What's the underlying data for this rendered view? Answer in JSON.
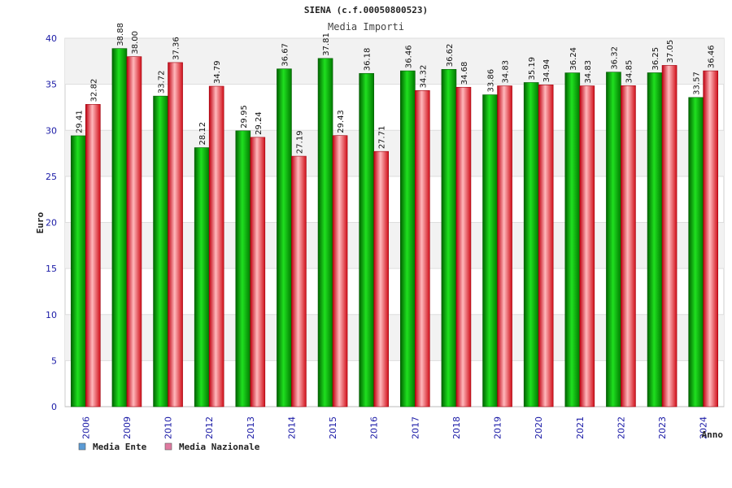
{
  "chart_data": {
    "type": "bar",
    "title": "SIENA (c.f.00050800523)",
    "subtitle": "Media Importi",
    "xlabel": "Anno",
    "ylabel": "Euro",
    "ylim": [
      0,
      40
    ],
    "yticks": [
      0,
      5,
      10,
      15,
      20,
      25,
      30,
      35,
      40
    ],
    "grid": true,
    "legend_position": "bottom-left",
    "categories": [
      "2006",
      "2009",
      "2010",
      "2012",
      "2013",
      "2014",
      "2015",
      "2016",
      "2017",
      "2018",
      "2019",
      "2020",
      "2021",
      "2022",
      "2023",
      "2024"
    ],
    "series": [
      {
        "name": "Media Ente",
        "color": "#00b000",
        "legend_color": "#5b9bd5",
        "values": [
          29.41,
          38.88,
          33.72,
          28.12,
          29.95,
          36.67,
          37.81,
          36.18,
          36.46,
          36.62,
          33.86,
          35.19,
          36.24,
          36.32,
          36.25,
          33.57
        ],
        "labels": [
          "29.41",
          "38.88",
          "33.72",
          "28.12",
          "29.95",
          "36.67",
          "37.81",
          "36.18",
          "36.46",
          "36.62",
          "33.86",
          "35.19",
          "36.24",
          "36.32",
          "36.25",
          "33.57"
        ]
      },
      {
        "name": "Media Nazionale",
        "color": "#e8202a",
        "legend_color": "#e07aa0",
        "values": [
          32.82,
          38.0,
          37.36,
          34.79,
          29.24,
          27.19,
          29.43,
          27.71,
          34.32,
          34.68,
          34.83,
          34.94,
          34.83,
          34.85,
          37.05,
          36.46
        ],
        "labels": [
          "32.82",
          "38.00",
          "37.36",
          "34.79",
          "29.24",
          "27.19",
          "29.43",
          "27.71",
          "34.32",
          "34.68",
          "34.83",
          "34.94",
          "34.83",
          "34.85",
          "37.05",
          "36.46"
        ]
      }
    ]
  }
}
